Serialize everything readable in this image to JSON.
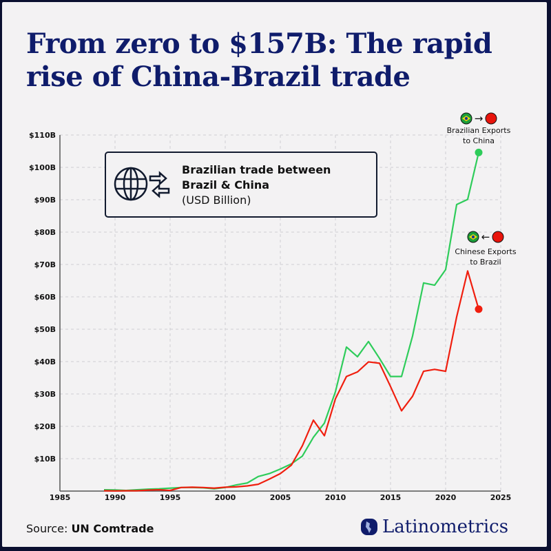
{
  "title": [
    "From zero to $157B: The rapid",
    "rise of China-Brazil trade"
  ],
  "infobox": {
    "line1": "Brazilian trade between",
    "line2": "Brazil & China",
    "line3": "(USD Billion)",
    "icon": "globe-exchange-icon"
  },
  "source": {
    "label": "Source:",
    "value": "UN Comtrade"
  },
  "logo": {
    "name": "Latinometrics"
  },
  "colors": {
    "background": "#f3f2f3",
    "title": "#0f1c6b",
    "brazil_exports": "#2ecc5a",
    "china_exports": "#f01e0e"
  },
  "chart_data": {
    "type": "line",
    "xlim": [
      1985,
      2025
    ],
    "ylim": [
      0,
      110
    ],
    "x_ticks": [
      "1985",
      "1990",
      "1995",
      "2000",
      "2005",
      "2010",
      "2015",
      "2020",
      "2025"
    ],
    "y_ticks": [
      "$10B",
      "$20B",
      "$30B",
      "$40B",
      "$50B",
      "$60B",
      "$70B",
      "$80B",
      "$90B",
      "$100B",
      "$110B"
    ],
    "grid": true,
    "x": [
      1989,
      1990,
      1991,
      1992,
      1993,
      1994,
      1995,
      1996,
      1997,
      1998,
      1999,
      2000,
      2001,
      2002,
      2003,
      2004,
      2005,
      2006,
      2007,
      2008,
      2009,
      2010,
      2011,
      2012,
      2013,
      2014,
      2015,
      2016,
      2017,
      2018,
      2019,
      2020,
      2021,
      2022,
      2023
    ],
    "series": [
      {
        "name": "Brazilian Exports to China",
        "flags": "Brazil → China",
        "color": "#2ecc5a",
        "values": [
          0.4,
          0.35,
          0.2,
          0.4,
          0.6,
          0.7,
          0.9,
          1.1,
          1.1,
          1.0,
          0.7,
          1.1,
          1.9,
          2.5,
          4.5,
          5.4,
          6.8,
          8.4,
          10.8,
          16.6,
          21.0,
          30.7,
          44.5,
          41.5,
          46.2,
          41.0,
          35.4,
          35.4,
          47.9,
          64.3,
          63.6,
          68.4,
          88.5,
          90.1,
          104.6
        ]
      },
      {
        "name": "Chinese Exports to Brazil",
        "flags": "Brazil ← China",
        "color": "#f01e0e",
        "values": [
          0.1,
          0.05,
          0.1,
          0.1,
          0.3,
          0.4,
          0.2,
          1.1,
          1.2,
          1.1,
          0.9,
          1.2,
          1.3,
          1.6,
          2.1,
          3.7,
          5.4,
          8.0,
          14.0,
          21.9,
          17.1,
          28.5,
          35.4,
          36.8,
          39.9,
          39.5,
          32.3,
          24.8,
          29.3,
          37.0,
          37.6,
          37.0,
          53.8,
          68.0,
          56.2
        ]
      }
    ]
  }
}
